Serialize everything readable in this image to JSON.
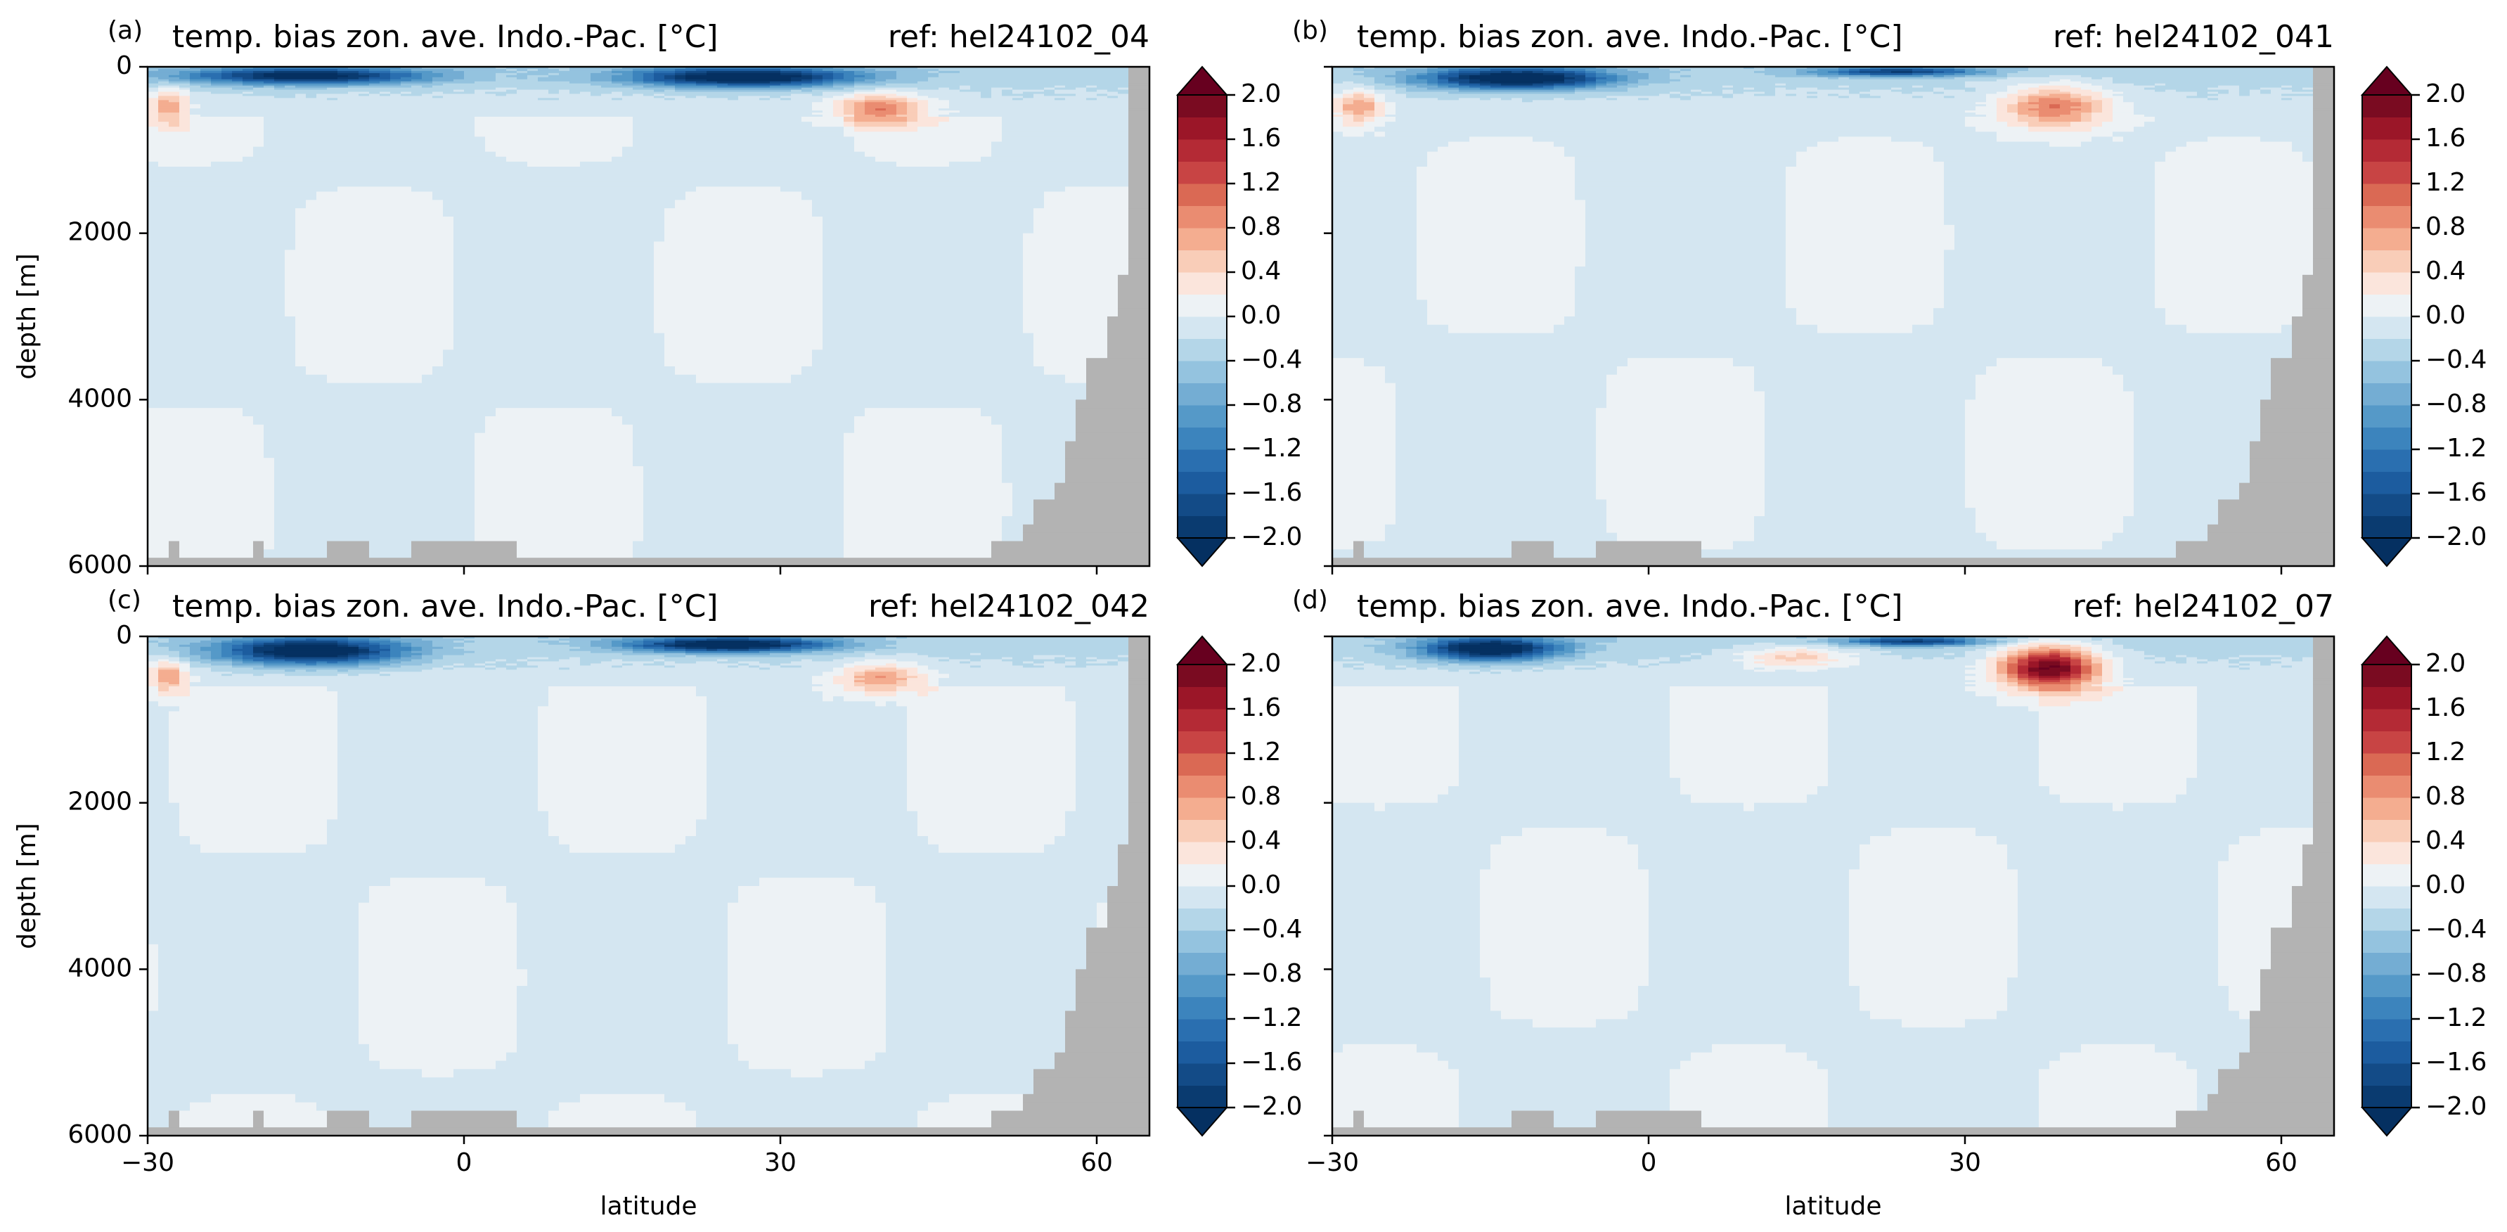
{
  "figure": {
    "xlabel": "latitude",
    "ylabel": "depth [m]"
  },
  "colorbar": {
    "ticks": [
      "2.0",
      "1.6",
      "1.2",
      "0.8",
      "0.4",
      "0.0",
      "−0.4",
      "−0.8",
      "−1.2",
      "−1.6",
      "−2.0"
    ],
    "levels": [
      -2.0,
      -1.8,
      -1.6,
      -1.4,
      -1.2,
      -1.0,
      -0.8,
      -0.6,
      -0.4,
      -0.2,
      0.0,
      0.2,
      0.4,
      0.6,
      0.8,
      1.0,
      1.2,
      1.4,
      1.6,
      1.8,
      2.0
    ],
    "colors": [
      "#0a3b70",
      "#134b87",
      "#1c5c9f",
      "#2a6fb0",
      "#3c84bd",
      "#5599c8",
      "#74add3",
      "#94c3df",
      "#b4d6e8",
      "#d4e6f1",
      "#edf2f5",
      "#fbe5dc",
      "#f9cdb8",
      "#f4ad90",
      "#ea8c71",
      "#da6954",
      "#c84444",
      "#b42a35",
      "#9b1628",
      "#7a0b21"
    ],
    "under_color": "#053061",
    "over_color": "#67001f",
    "land_color": "#b3b3b3"
  },
  "chart_data": [
    {
      "type": "heatmap",
      "panel_label": "(a)",
      "title": "temp. bias zon. ave. Indo.-Pac. [°C]",
      "ref_label": "ref: hel24102_04",
      "xlabel": "",
      "ylabel": "depth [m]",
      "xticks": [
        "−30",
        "0",
        "30",
        "60"
      ],
      "yticks": [
        "0",
        "2000",
        "4000",
        "6000"
      ],
      "xlim": [
        -30,
        65
      ],
      "ylim": [
        6000,
        0
      ],
      "colorbar_range": [
        -2.0,
        2.0
      ],
      "features": [
        {
          "kind": "cold_surface",
          "lat": [
            -27,
            -3
          ],
          "depth": [
            0,
            220
          ],
          "min": -1.8
        },
        {
          "kind": "cold_surface",
          "lat": [
            15,
            38
          ],
          "depth": [
            0,
            250
          ],
          "min": -2.0
        },
        {
          "kind": "warm_core",
          "lat": [
            -30,
            -26
          ],
          "depth": [
            250,
            700
          ],
          "max": 0.8
        },
        {
          "kind": "warm_core",
          "lat": [
            35,
            44
          ],
          "depth": [
            300,
            700
          ],
          "max": 1.0
        }
      ]
    },
    {
      "type": "heatmap",
      "panel_label": "(b)",
      "title": "temp. bias zon. ave. Indo.-Pac. [°C]",
      "ref_label": "ref: hel24102_041",
      "xlabel": "",
      "ylabel": "",
      "xticks": [
        "−30",
        "0",
        "30",
        "60"
      ],
      "yticks": [],
      "xlim": [
        -30,
        65
      ],
      "ylim": [
        6000,
        0
      ],
      "colorbar_range": [
        -2.0,
        2.0
      ],
      "features": [
        {
          "kind": "cold_surface",
          "lat": [
            -22,
            -3
          ],
          "depth": [
            0,
            280
          ],
          "min": -2.0
        },
        {
          "kind": "cold_surface",
          "lat": [
            15,
            32
          ],
          "depth": [
            0,
            120
          ],
          "min": -1.4
        },
        {
          "kind": "warm_core",
          "lat": [
            -30,
            -25
          ],
          "depth": [
            250,
            700
          ],
          "max": 0.8
        },
        {
          "kind": "warm_core",
          "lat": [
            33,
            44
          ],
          "depth": [
            200,
            750
          ],
          "max": 1.0
        }
      ]
    },
    {
      "type": "heatmap",
      "panel_label": "(c)",
      "title": "temp. bias zon. ave. Indo.-Pac. [°C]",
      "ref_label": "ref: hel24102_042",
      "xlabel": "latitude",
      "ylabel": "depth [m]",
      "xticks": [
        "−30",
        "0",
        "30",
        "60"
      ],
      "yticks": [
        "0",
        "2000",
        "4000",
        "6000"
      ],
      "xlim": [
        -30,
        65
      ],
      "ylim": [
        6000,
        0
      ],
      "colorbar_range": [
        -2.0,
        2.0
      ],
      "features": [
        {
          "kind": "cold_surface",
          "lat": [
            -24,
            -5
          ],
          "depth": [
            0,
            350
          ],
          "min": -2.0
        },
        {
          "kind": "cold_surface",
          "lat": [
            15,
            35
          ],
          "depth": [
            0,
            200
          ],
          "min": -2.0
        },
        {
          "kind": "warm_core",
          "lat": [
            -30,
            -26
          ],
          "depth": [
            250,
            700
          ],
          "max": 0.8
        },
        {
          "kind": "warm_core",
          "lat": [
            35,
            44
          ],
          "depth": [
            300,
            700
          ],
          "max": 0.8
        }
      ]
    },
    {
      "type": "heatmap",
      "panel_label": "(d)",
      "title": "temp. bias zon. ave. Indo.-Pac. [°C]",
      "ref_label": "ref: hel24102_07",
      "xlabel": "latitude",
      "ylabel": "",
      "xticks": [
        "−30",
        "0",
        "30",
        "60"
      ],
      "yticks": [],
      "xlim": [
        -30,
        65
      ],
      "ylim": [
        6000,
        0
      ],
      "colorbar_range": [
        -2.0,
        2.0
      ],
      "features": [
        {
          "kind": "cold_surface",
          "lat": [
            -22,
            -8
          ],
          "depth": [
            0,
            300
          ],
          "min": -2.0
        },
        {
          "kind": "cold_surface",
          "lat": [
            18,
            32
          ],
          "depth": [
            0,
            120
          ],
          "min": -1.4
        },
        {
          "kind": "warm_core",
          "lat": [
            33,
            43
          ],
          "depth": [
            100,
            650
          ],
          "max": 2.0
        },
        {
          "kind": "warm_core",
          "lat": [
            8,
            20
          ],
          "depth": [
            100,
            400
          ],
          "max": 0.6
        }
      ]
    }
  ]
}
